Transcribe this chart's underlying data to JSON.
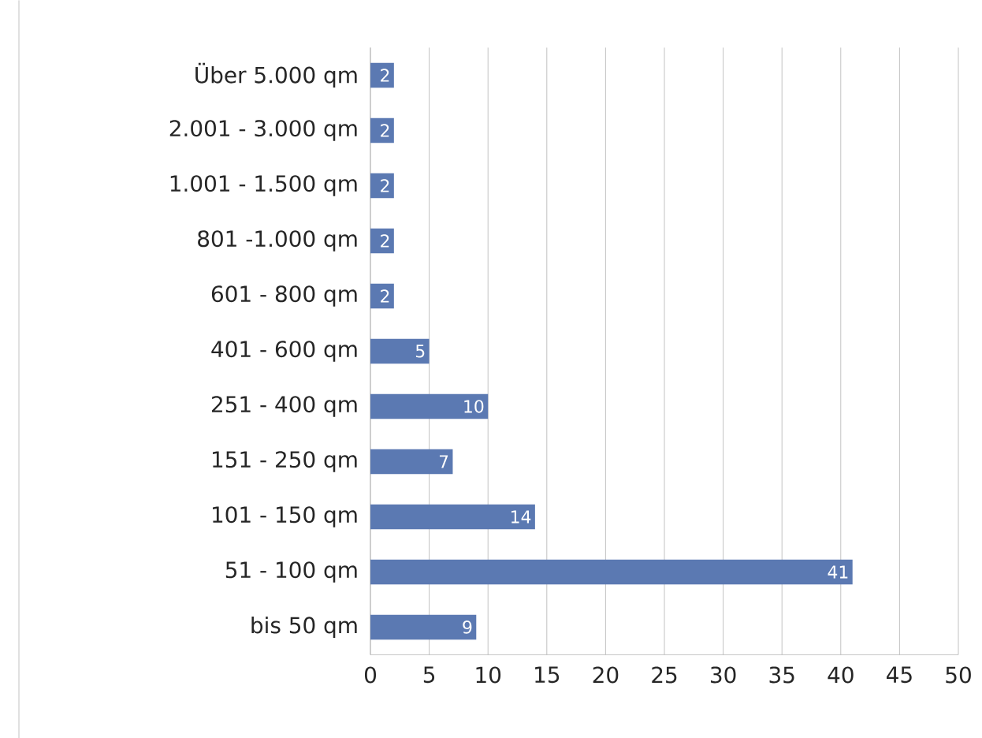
{
  "chart_data": {
    "type": "bar",
    "orientation": "horizontal",
    "categories": [
      "Über 5.000 qm",
      "2.001 - 3.000 qm",
      "1.001 - 1.500 qm",
      "801 -1.000 qm",
      "601 - 800 qm",
      "401 - 600 qm",
      "251 - 400 qm",
      "151 - 250 qm",
      "101 - 150 qm",
      "51 - 100 qm",
      "bis 50 qm"
    ],
    "values": [
      2,
      2,
      2,
      2,
      2,
      5,
      10,
      7,
      14,
      41,
      9
    ],
    "color": "#5b79b2",
    "data_labels": true,
    "grid": "x",
    "xlim": [
      0,
      50
    ],
    "xticks": [
      0,
      5,
      10,
      15,
      20,
      25,
      30,
      35,
      40,
      45,
      50
    ]
  }
}
